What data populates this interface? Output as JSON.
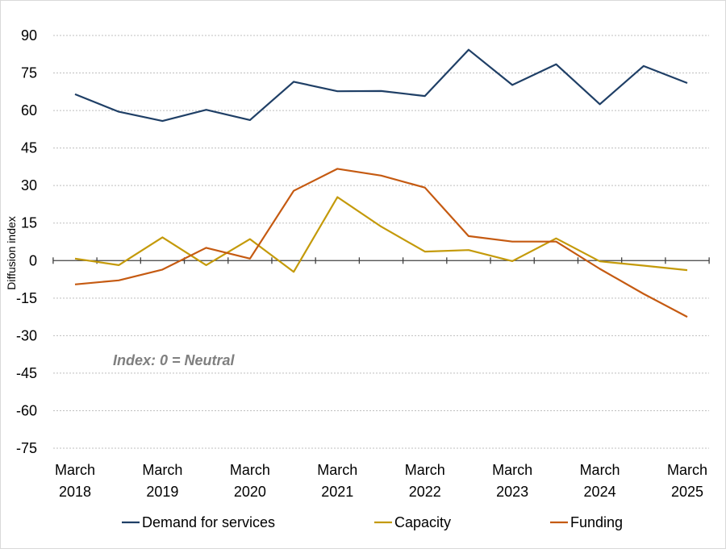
{
  "chart_data": {
    "type": "line",
    "ylabel": "Diffusion index",
    "ylim": [
      -75,
      90
    ],
    "yticks": [
      90,
      75,
      60,
      45,
      30,
      15,
      0,
      -15,
      -30,
      -45,
      -60,
      -75
    ],
    "grid": true,
    "legend_position": "bottom",
    "annotation": "Index: 0 = Neutral",
    "x_labels": [
      {
        "index": 0,
        "line1": "March",
        "line2": "2018"
      },
      {
        "index": 2,
        "line1": "March",
        "line2": "2019"
      },
      {
        "index": 4,
        "line1": "March",
        "line2": "2020"
      },
      {
        "index": 6,
        "line1": "March",
        "line2": "2021"
      },
      {
        "index": 8,
        "line1": "March",
        "line2": "2022"
      },
      {
        "index": 10,
        "line1": "March",
        "line2": "2023"
      },
      {
        "index": 12,
        "line1": "March",
        "line2": "2024"
      },
      {
        "index": 14,
        "line1": "March",
        "line2": "2025"
      }
    ],
    "series": [
      {
        "name": "Demand for services",
        "color": "#1f3f66",
        "values": [
          66.5,
          59.5,
          55.8,
          60.3,
          56.2,
          71.5,
          67.7,
          67.8,
          65.8,
          84.3,
          70.2,
          78.5,
          62.5,
          77.8,
          71.0
        ]
      },
      {
        "name": "Capacity",
        "color": "#c49a0a",
        "values": [
          0.8,
          -1.8,
          9.3,
          -1.8,
          8.6,
          -4.5,
          25.4,
          13.6,
          3.6,
          4.2,
          -0.2,
          8.9,
          -0.3,
          -2.0,
          -3.8
        ]
      },
      {
        "name": "Funding",
        "color": "#c55a11",
        "values": [
          -9.5,
          -7.9,
          -3.6,
          5.1,
          0.8,
          27.9,
          36.7,
          34.0,
          29.2,
          9.8,
          7.6,
          7.6,
          -3.3,
          -13.3,
          -22.5
        ]
      }
    ]
  }
}
